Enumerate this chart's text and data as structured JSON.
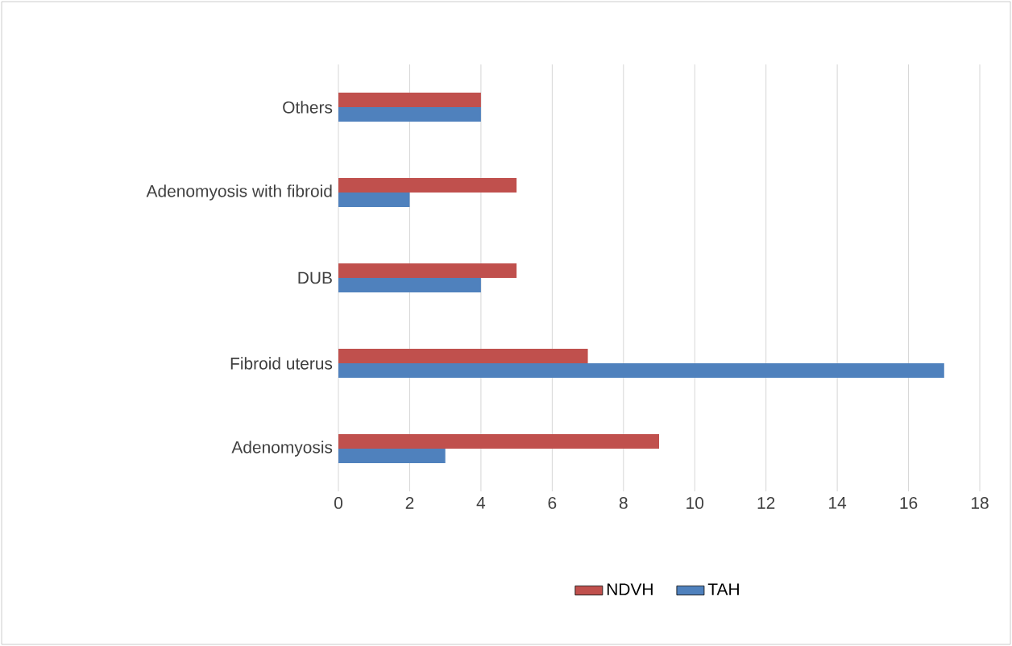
{
  "chart_data": {
    "type": "bar",
    "orientation": "horizontal",
    "categories": [
      "Others",
      "Adenomyosis with fibroid",
      "DUB",
      "Fibroid uterus",
      "Adenomyosis"
    ],
    "series": [
      {
        "name": "NDVH",
        "color": "#c0504d",
        "values": [
          4,
          5,
          5,
          7,
          9
        ]
      },
      {
        "name": "TAH",
        "color": "#4f81bd",
        "values": [
          4,
          2,
          4,
          17,
          3
        ]
      }
    ],
    "xlim": [
      0,
      18
    ],
    "xticks": [
      0,
      2,
      4,
      6,
      8,
      10,
      12,
      14,
      16,
      18
    ],
    "grid": "x",
    "legend": "bottom"
  }
}
